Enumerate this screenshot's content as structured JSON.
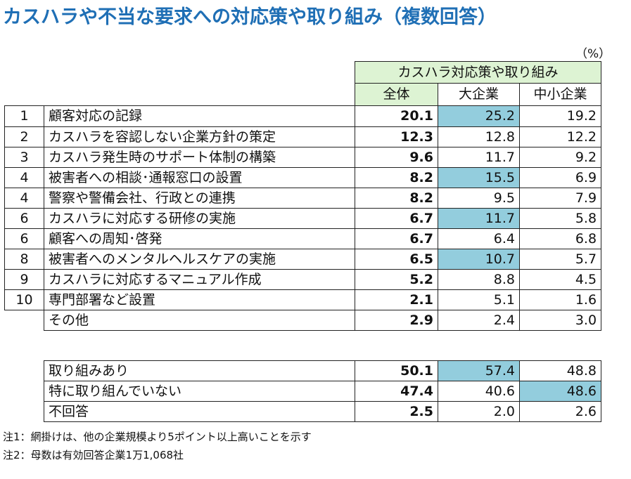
{
  "title": "カスハラや不当な要求への対応策や取り組み（複数回答）",
  "unit": "（%）",
  "header": {
    "group": "カスハラ対応策や取り組み",
    "all": "全体",
    "large": "大企業",
    "sme": "中小企業"
  },
  "rows": [
    {
      "rank": "1",
      "item": "顧客対応の記録",
      "all": "20.1",
      "large": "25.2",
      "sme": "19.2"
    },
    {
      "rank": "2",
      "item": "カスハラを容認しない企業方針の策定",
      "all": "12.3",
      "large": "12.8",
      "sme": "12.2"
    },
    {
      "rank": "3",
      "item": "カスハラ発生時のサポート体制の構築",
      "all": "9.6",
      "large": "11.7",
      "sme": "9.2"
    },
    {
      "rank": "4",
      "item": "被害者への相談･通報窓口の設置",
      "all": "8.2",
      "large": "15.5",
      "sme": "6.9"
    },
    {
      "rank": "4",
      "item": "警察や警備会社、行政との連携",
      "all": "8.2",
      "large": "9.5",
      "sme": "7.9"
    },
    {
      "rank": "6",
      "item": "カスハラに対応する研修の実施",
      "all": "6.7",
      "large": "11.7",
      "sme": "5.8"
    },
    {
      "rank": "6",
      "item": "顧客への周知･啓発",
      "all": "6.7",
      "large": "6.4",
      "sme": "6.8"
    },
    {
      "rank": "8",
      "item": "被害者へのメンタルヘルスケアの実施",
      "all": "6.5",
      "large": "10.7",
      "sme": "5.7"
    },
    {
      "rank": "9",
      "item": "カスハラに対応するマニュアル作成",
      "all": "5.2",
      "large": "8.8",
      "sme": "4.5"
    },
    {
      "rank": "10",
      "item": "専門部署など設置",
      "all": "2.1",
      "large": "5.1",
      "sme": "1.6"
    },
    {
      "rank": "",
      "item": "その他",
      "all": "2.9",
      "large": "2.4",
      "sme": "3.0"
    }
  ],
  "summary": [
    {
      "item": "取り組みあり",
      "all": "50.1",
      "large": "57.4",
      "sme": "48.8"
    },
    {
      "item": "特に取り組んでいない",
      "all": "47.4",
      "large": "40.6",
      "sme": "48.6"
    },
    {
      "item": "不回答",
      "all": "2.5",
      "large": "2.0",
      "sme": "2.6"
    }
  ],
  "notes": [
    "注1：網掛けは、他の企業規模より5ポイント以上高いことを示す",
    "注2：母数は有効回答企業1万1,068社"
  ],
  "colors": {
    "title": "#1f6fb5",
    "header_fill": "#ddf3d3",
    "highlight_fill": "#93cddd"
  }
}
